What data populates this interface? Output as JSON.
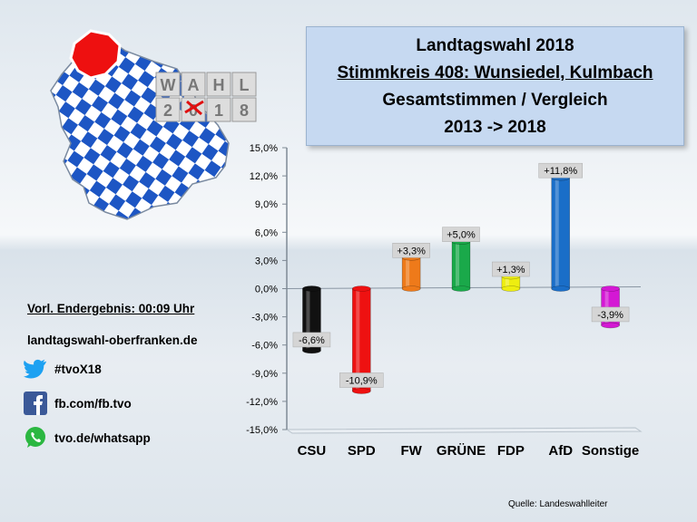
{
  "title": {
    "line1": "Landtagswahl 2018",
    "line2": "Stimmkreis 408: Wunsiedel, Kulmbach",
    "line3": "Gesamtstimmen / Vergleich",
    "line4": "2013 -> 2018"
  },
  "logo": {
    "letters": [
      "W",
      "A",
      "H",
      "L",
      "2",
      "0",
      "1",
      "8"
    ],
    "icon_name": "bavaria-map-logo"
  },
  "sidebar": {
    "result_time": "Vorl. Endergebnis: 00:09 Uhr",
    "website": "landtagswahl-oberfranken.de",
    "twitter": "#tvoX18",
    "facebook": "fb.com/fb.tvo",
    "whatsapp": "tvo.de/whatsapp"
  },
  "source": "Quelle: Landeswahlleiter",
  "chart_data": {
    "type": "bar",
    "categories": [
      "CSU",
      "SPD",
      "FW",
      "GRÜNE",
      "FDP",
      "AfD",
      "Sonstige"
    ],
    "values": [
      -6.6,
      -10.9,
      3.3,
      5.0,
      1.3,
      11.8,
      -3.9
    ],
    "labels": [
      "-6,6%",
      "-10,9%",
      "+3,3%",
      "+5,0%",
      "+1,3%",
      "+11,8%",
      "-3,9%"
    ],
    "colors": [
      "#111111",
      "#ee1111",
      "#ee7a1a",
      "#1aa94a",
      "#eeee10",
      "#1a6ec8",
      "#d418d4"
    ],
    "ylim": [
      -15,
      15
    ],
    "yticks": [
      "15,0%",
      "12,0%",
      "9,0%",
      "6,0%",
      "3,0%",
      "0,0%",
      "-3,0%",
      "-6,0%",
      "-9,0%",
      "-12,0%",
      "-15,0%"
    ],
    "ytick_values": [
      15,
      12,
      9,
      6,
      3,
      0,
      -3,
      -6,
      -9,
      -12,
      -15
    ],
    "grid": false,
    "legend": "none"
  }
}
